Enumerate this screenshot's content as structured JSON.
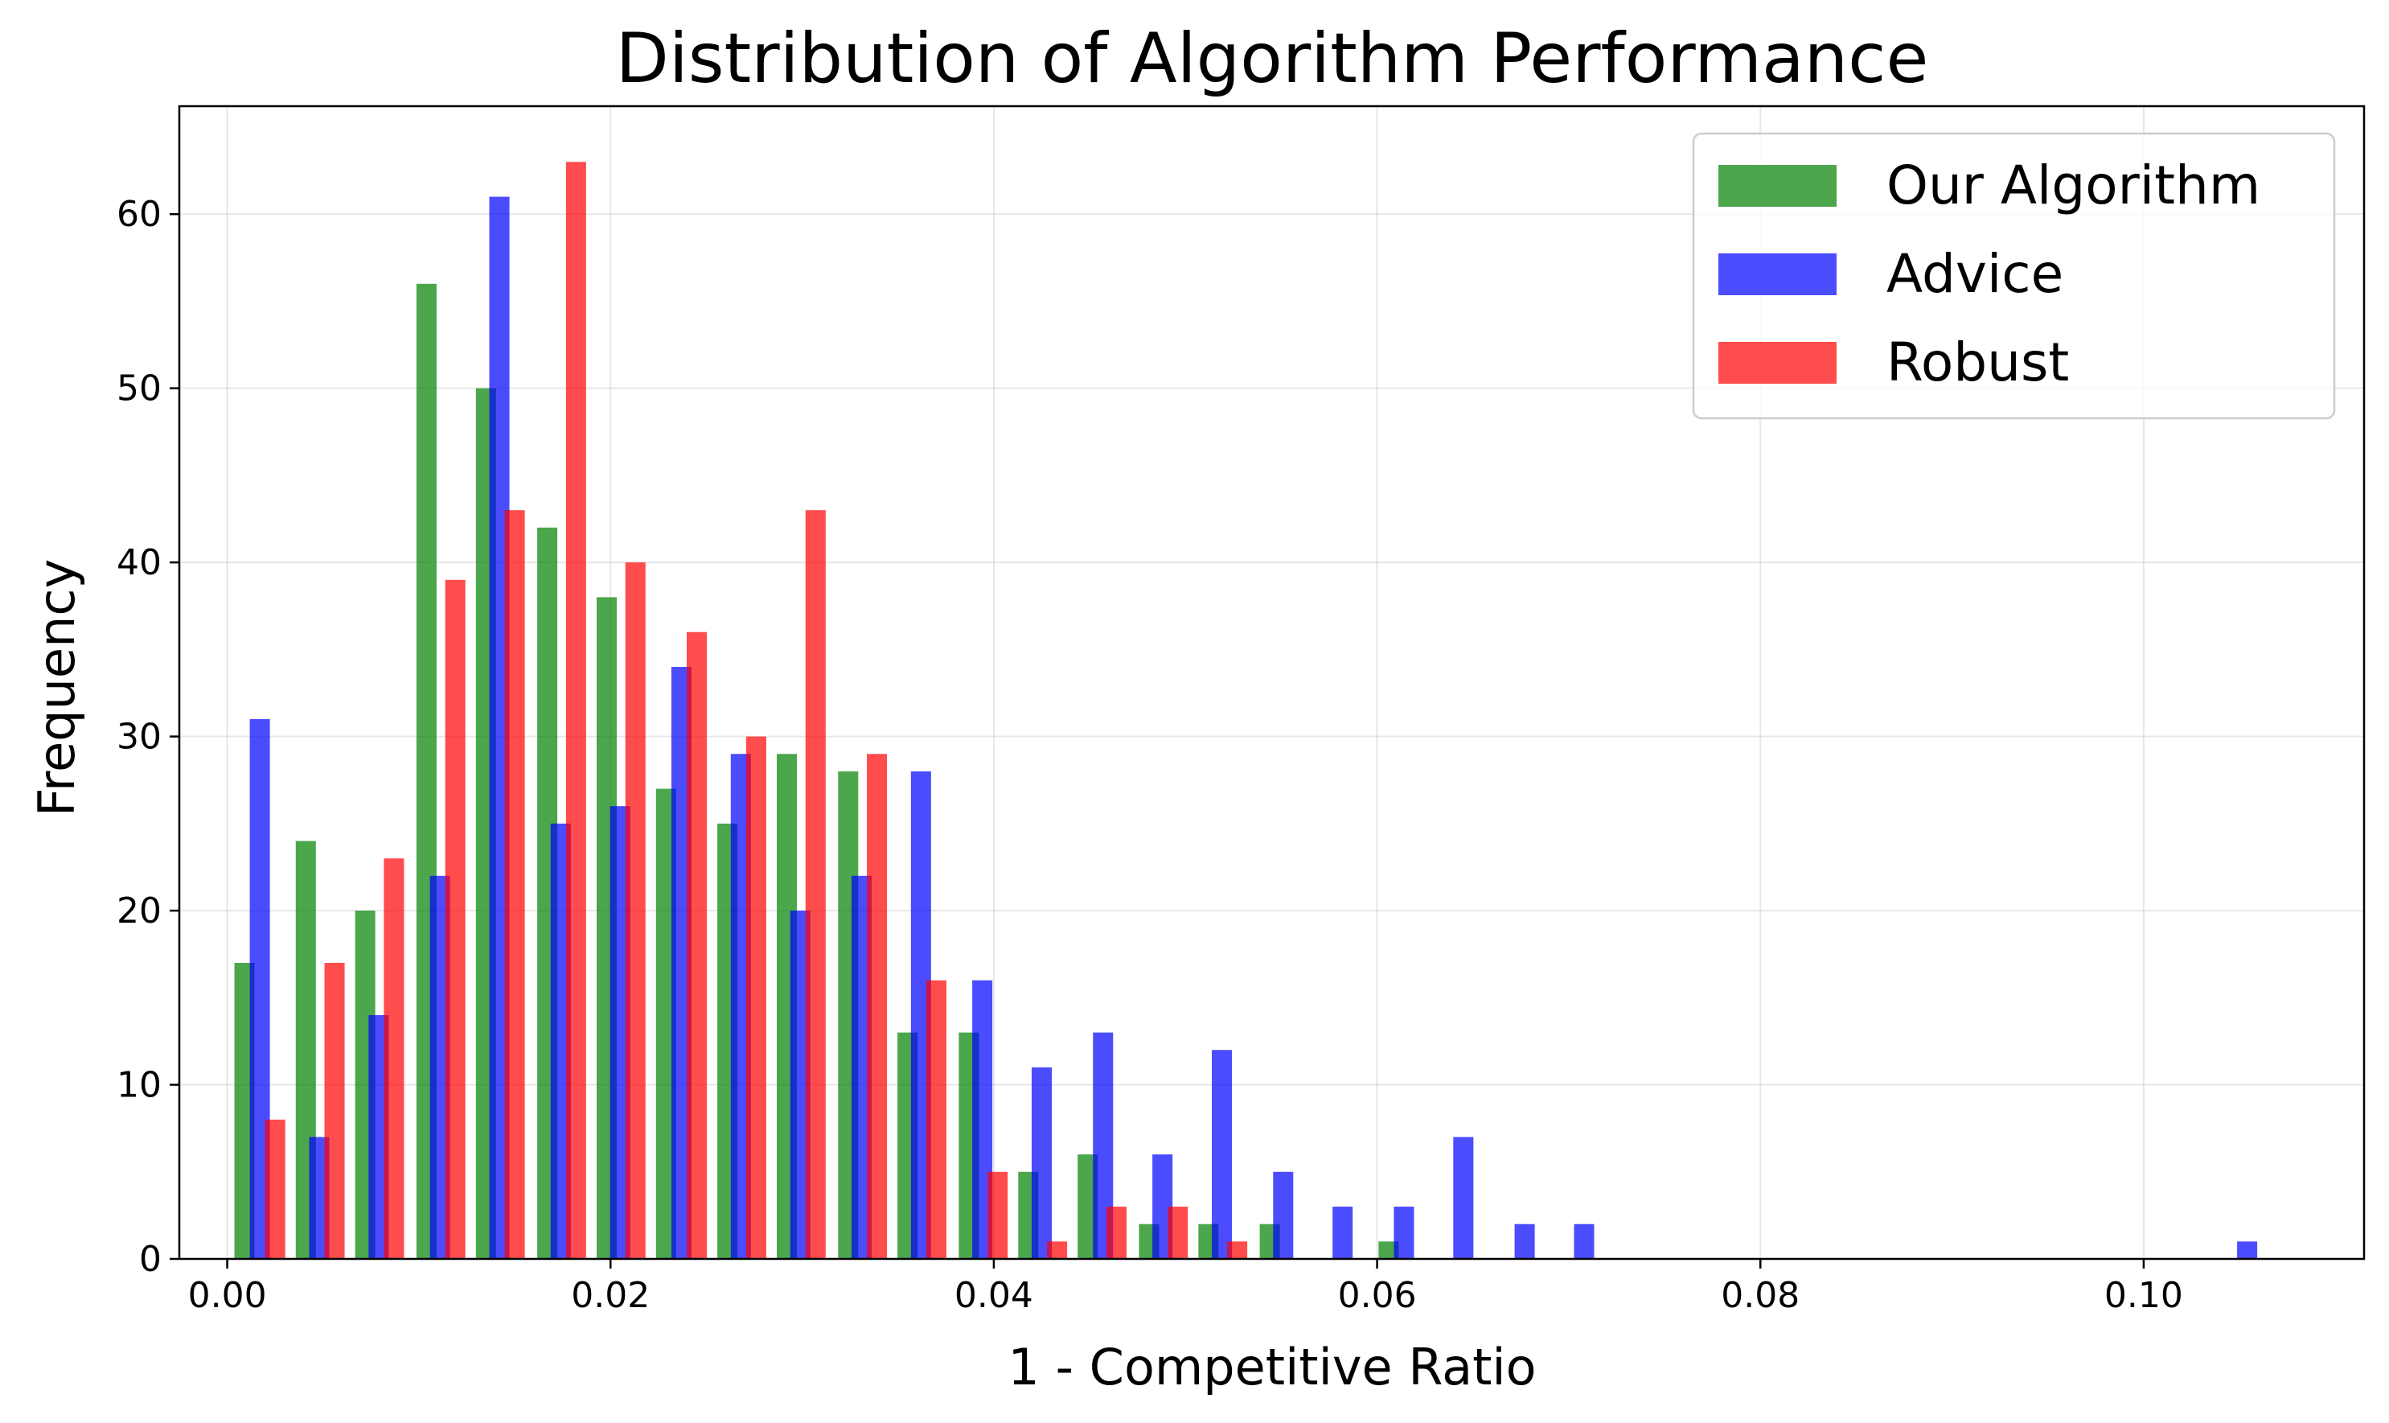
{
  "chart_data": {
    "type": "bar",
    "title": "Distribution of Algorithm Performance",
    "xlabel": "1 - Competitive Ratio",
    "ylabel": "Frequency",
    "xlim": [
      -0.0025,
      0.1115
    ],
    "ylim": [
      0,
      66.2
    ],
    "xticks": [
      0.0,
      0.02,
      0.04,
      0.06,
      0.08,
      0.1
    ],
    "xtick_labels": [
      "0.00",
      "0.02",
      "0.04",
      "0.06",
      "0.08",
      "0.10"
    ],
    "yticks": [
      0,
      10,
      20,
      30,
      40,
      50,
      60
    ],
    "ytick_labels": [
      "0",
      "10",
      "20",
      "30",
      "40",
      "50",
      "60"
    ],
    "grid": true,
    "legend_position": "top-right",
    "series": [
      {
        "name": "Our Algorithm",
        "color": "#008000",
        "opacity": 0.7,
        "bars": [
          {
            "x": 0.0009,
            "value": 17
          },
          {
            "x": 0.0041,
            "value": 24
          },
          {
            "x": 0.0072,
            "value": 20
          },
          {
            "x": 0.0104,
            "value": 56
          },
          {
            "x": 0.0135,
            "value": 50
          },
          {
            "x": 0.0167,
            "value": 42
          },
          {
            "x": 0.0198,
            "value": 38
          },
          {
            "x": 0.0229,
            "value": 27
          },
          {
            "x": 0.0261,
            "value": 25
          },
          {
            "x": 0.0292,
            "value": 29
          },
          {
            "x": 0.0324,
            "value": 28
          },
          {
            "x": 0.0355,
            "value": 13
          },
          {
            "x": 0.0387,
            "value": 13
          },
          {
            "x": 0.0418,
            "value": 5
          },
          {
            "x": 0.0449,
            "value": 6
          },
          {
            "x": 0.0481,
            "value": 2
          },
          {
            "x": 0.0512,
            "value": 2
          },
          {
            "x": 0.0544,
            "value": 2
          },
          {
            "x": 0.0606,
            "value": 1
          }
        ]
      },
      {
        "name": "Advice",
        "color": "#0000ff",
        "opacity": 0.7,
        "bars": [
          {
            "x": 0.0017,
            "value": 31
          },
          {
            "x": 0.0048,
            "value": 7
          },
          {
            "x": 0.0079,
            "value": 14
          },
          {
            "x": 0.0111,
            "value": 22
          },
          {
            "x": 0.0142,
            "value": 61
          },
          {
            "x": 0.0174,
            "value": 25
          },
          {
            "x": 0.0205,
            "value": 26
          },
          {
            "x": 0.0237,
            "value": 34
          },
          {
            "x": 0.0268,
            "value": 29
          },
          {
            "x": 0.0299,
            "value": 20
          },
          {
            "x": 0.0331,
            "value": 22
          },
          {
            "x": 0.0362,
            "value": 28
          },
          {
            "x": 0.0394,
            "value": 16
          },
          {
            "x": 0.0425,
            "value": 11
          },
          {
            "x": 0.0457,
            "value": 13
          },
          {
            "x": 0.0488,
            "value": 6
          },
          {
            "x": 0.0519,
            "value": 12
          },
          {
            "x": 0.0551,
            "value": 5
          },
          {
            "x": 0.0582,
            "value": 3
          },
          {
            "x": 0.0614,
            "value": 3
          },
          {
            "x": 0.0645,
            "value": 7
          },
          {
            "x": 0.0677,
            "value": 2
          },
          {
            "x": 0.0708,
            "value": 2
          },
          {
            "x": 0.1054,
            "value": 1
          }
        ]
      },
      {
        "name": "Robust",
        "color": "#ff0000",
        "opacity": 0.7,
        "bars": [
          {
            "x": 0.0025,
            "value": 8
          },
          {
            "x": 0.0056,
            "value": 17
          },
          {
            "x": 0.0087,
            "value": 23
          },
          {
            "x": 0.0119,
            "value": 39
          },
          {
            "x": 0.015,
            "value": 43
          },
          {
            "x": 0.0182,
            "value": 63
          },
          {
            "x": 0.0213,
            "value": 40
          },
          {
            "x": 0.0245,
            "value": 36
          },
          {
            "x": 0.0276,
            "value": 30
          },
          {
            "x": 0.0307,
            "value": 43
          },
          {
            "x": 0.0339,
            "value": 29
          },
          {
            "x": 0.037,
            "value": 16
          },
          {
            "x": 0.0402,
            "value": 5
          },
          {
            "x": 0.0433,
            "value": 1
          },
          {
            "x": 0.0464,
            "value": 3
          },
          {
            "x": 0.0496,
            "value": 3
          },
          {
            "x": 0.0527,
            "value": 1
          }
        ]
      }
    ]
  }
}
